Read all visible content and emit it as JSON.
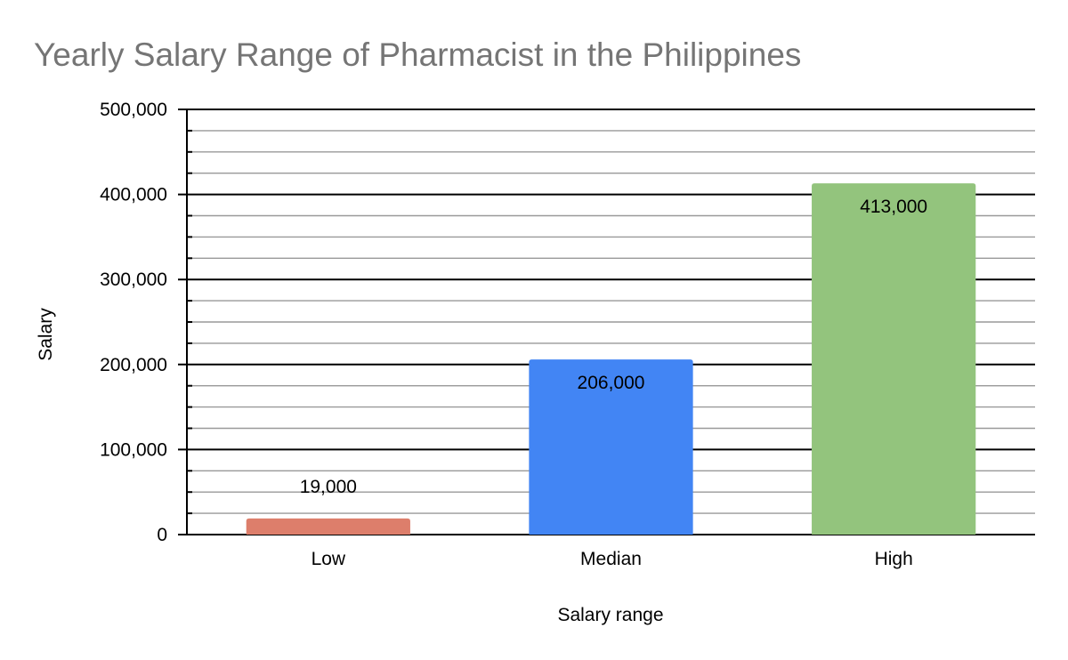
{
  "chart_data": {
    "type": "bar",
    "title": "Yearly Salary Range of Pharmacist in the Philippines",
    "xlabel": "Salary range",
    "ylabel": "Salary",
    "categories": [
      "Low",
      "Median",
      "High"
    ],
    "values": [
      19000,
      206000,
      413000
    ],
    "data_labels": [
      "19,000",
      "206,000",
      "413,000"
    ],
    "bar_colors": [
      "#dd7e6b",
      "#4285f4",
      "#93c47d"
    ],
    "ylim": [
      0,
      500000
    ],
    "y_ticks": [
      0,
      100000,
      200000,
      300000,
      400000,
      500000
    ],
    "y_tick_labels": [
      "0",
      "100,000",
      "200,000",
      "300,000",
      "400,000",
      "500,000"
    ],
    "minor_gridlines_per_major": 3,
    "grid": true,
    "legend": "none"
  }
}
